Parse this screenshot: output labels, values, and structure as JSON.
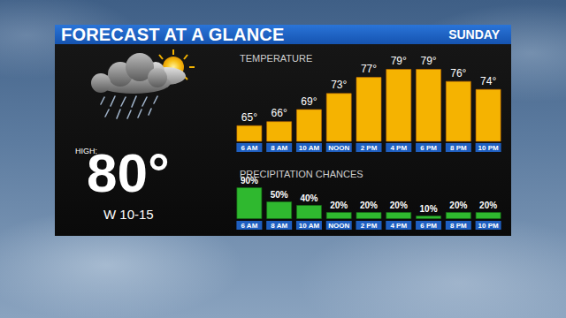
{
  "header": {
    "title": "FORECAST AT A GLANCE",
    "day": "SUNDAY"
  },
  "summary": {
    "high_label": "HIGH:",
    "high": "80°",
    "wind": "W 10-15"
  },
  "chart_data": [
    {
      "type": "bar",
      "title": "TEMPERATURE",
      "categories": [
        "6 AM",
        "8 AM",
        "10 AM",
        "NOON",
        "2 PM",
        "4 PM",
        "6 PM",
        "8 PM",
        "10 PM"
      ],
      "values": [
        65,
        66,
        69,
        73,
        77,
        79,
        79,
        76,
        74
      ],
      "value_labels": [
        "65°",
        "66°",
        "69°",
        "73°",
        "77°",
        "79°",
        "79°",
        "76°",
        "74°"
      ],
      "color": "#f5b301",
      "ylim": [
        61,
        79
      ],
      "data_labels": true,
      "tick_labels": "x",
      "grid": false
    },
    {
      "type": "bar",
      "title": "PRECIPITATION CHANCES",
      "categories": [
        "6 AM",
        "8 AM",
        "10 AM",
        "NOON",
        "2 PM",
        "4 PM",
        "6 PM",
        "8 PM",
        "10 PM"
      ],
      "values": [
        90,
        50,
        40,
        20,
        20,
        20,
        10,
        20,
        20
      ],
      "value_labels": [
        "90%",
        "50%",
        "40%",
        "20%",
        "20%",
        "20%",
        "10%",
        "20%",
        "20%"
      ],
      "color": "#2fb82f",
      "ylim": [
        0,
        90
      ],
      "data_labels": true,
      "tick_labels": "x",
      "grid": false
    }
  ]
}
